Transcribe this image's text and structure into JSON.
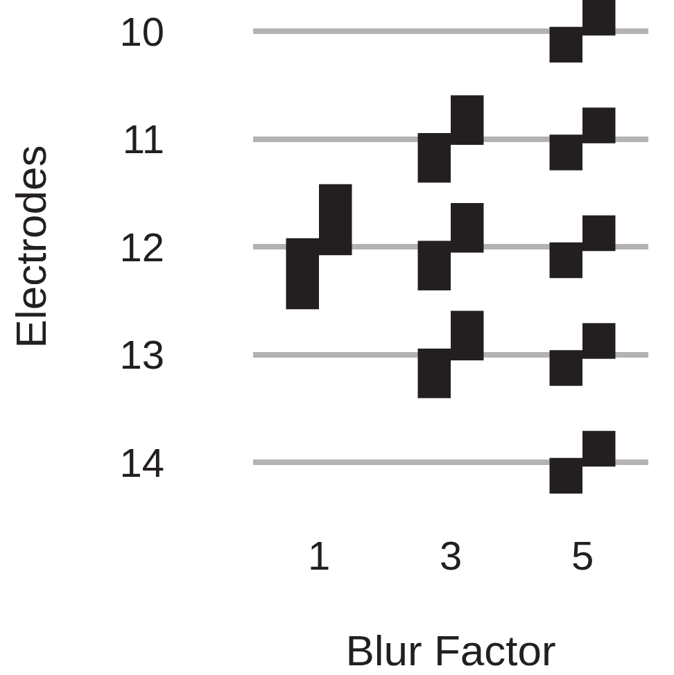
{
  "chart_data": {
    "type": "glyph",
    "xlabel": "Blur Factor",
    "ylabel": "Electrodes",
    "categories": [
      "1",
      "3",
      "5"
    ],
    "rows": [
      10,
      11,
      12,
      13,
      14
    ],
    "values": [
      [
        null,
        null,
        0.33
      ],
      [
        null,
        0.46,
        0.33
      ],
      [
        0.66,
        0.46,
        0.33
      ],
      [
        null,
        0.46,
        0.33
      ],
      [
        null,
        null,
        0.33
      ]
    ],
    "color": "#231f20",
    "grid": true
  }
}
